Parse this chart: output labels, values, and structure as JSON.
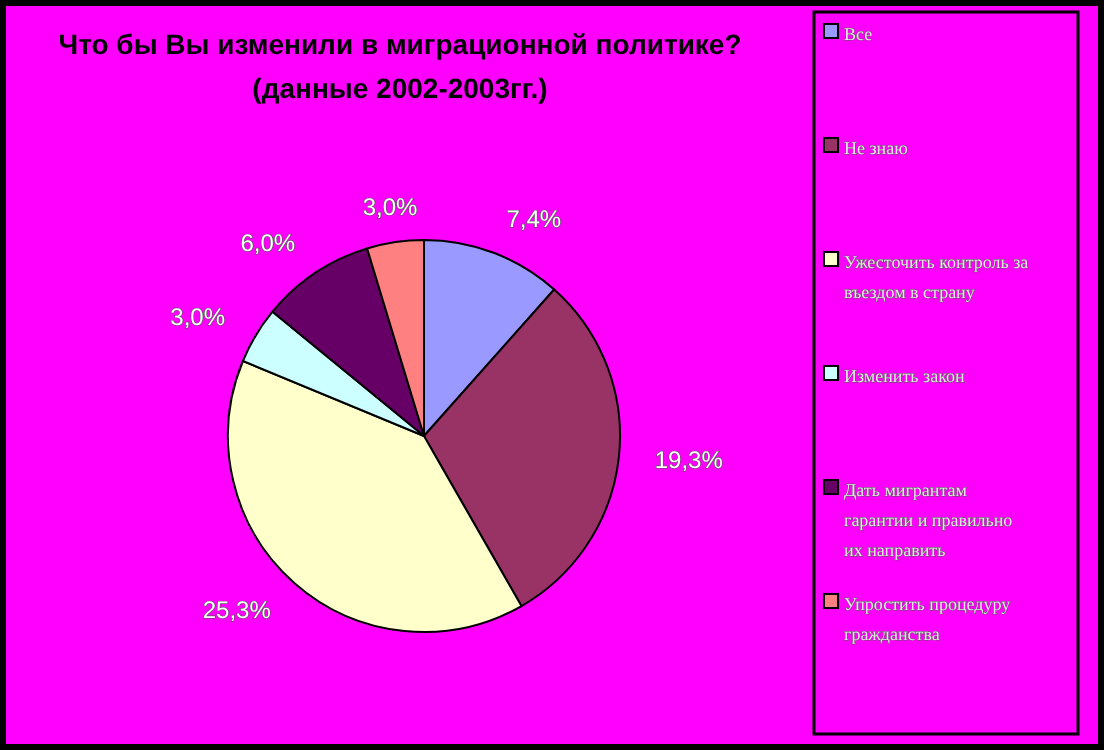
{
  "chart_data": {
    "type": "pie",
    "title": "Что бы Вы изменили в миграционной политике?\n(данные 2002-2003гг.)",
    "categories": [
      "Все",
      "Не знаю",
      "Ужесточить контроль за въездом в страну",
      "Изменить закон",
      "Дать мигрантам гарантии и правильно их направить",
      "Упростить процедуру гражданства"
    ],
    "values": [
      7.4,
      19.3,
      25.3,
      3.0,
      6.0,
      3.0
    ],
    "value_labels": [
      "7,4%",
      "19,3%",
      "25,3%",
      "3,0%",
      "6,0%",
      "3,0%"
    ],
    "colors": [
      "#9999ff",
      "#993366",
      "#ffffcc",
      "#ccffff",
      "#660066",
      "#ff8080"
    ],
    "legend": "right"
  }
}
